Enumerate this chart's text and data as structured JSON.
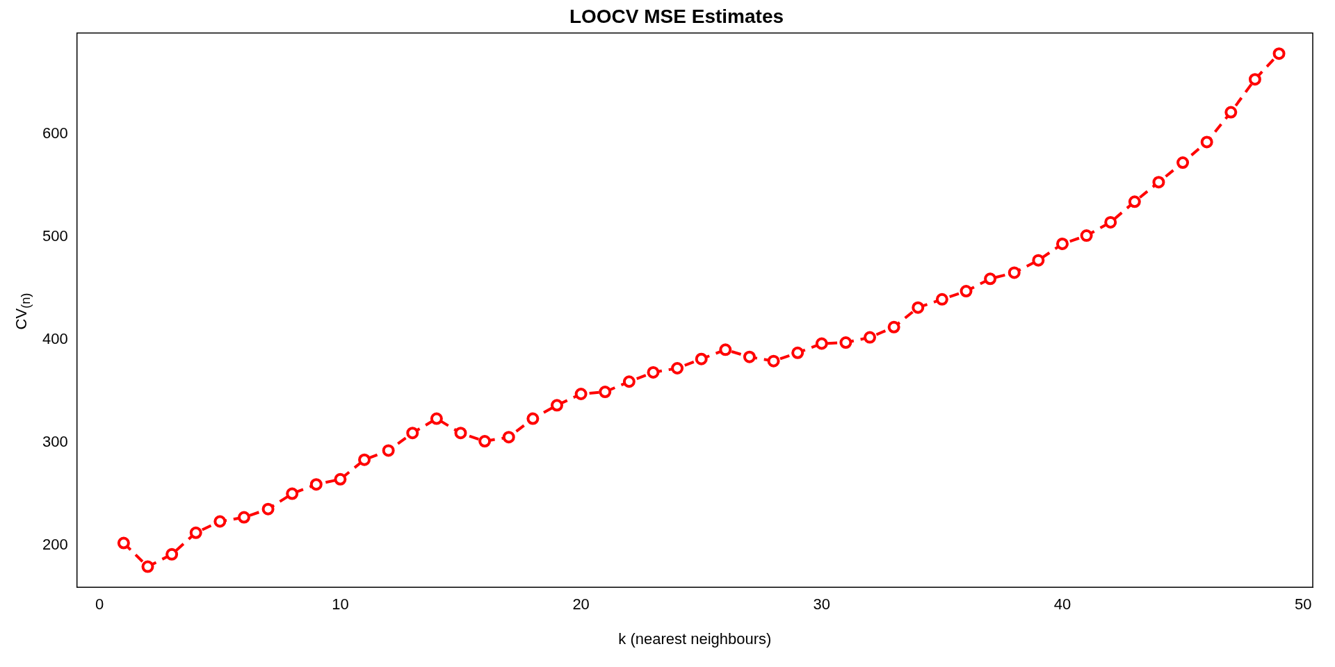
{
  "chart_data": {
    "type": "line",
    "title": "LOOCV MSE Estimates",
    "xlabel": "k (nearest neighbours)",
    "ylabel": "CV$_{(n)}$",
    "x": [
      1,
      2,
      3,
      4,
      5,
      6,
      7,
      8,
      9,
      10,
      11,
      12,
      13,
      14,
      15,
      16,
      17,
      18,
      19,
      20,
      21,
      22,
      23,
      24,
      25,
      26,
      27,
      28,
      29,
      30,
      31,
      32,
      33,
      34,
      35,
      36,
      37,
      38,
      39,
      40,
      41,
      42,
      43,
      44,
      45,
      46,
      47,
      48,
      49
    ],
    "series": [
      {
        "color": "#ff0000",
        "values": [
          202,
          179,
          191,
          212,
          223,
          227,
          235,
          250,
          259,
          264,
          283,
          292,
          309,
          323,
          309,
          301,
          305,
          323,
          336,
          347,
          349,
          359,
          368,
          372,
          381,
          390,
          383,
          379,
          387,
          396,
          397,
          402,
          412,
          431,
          439,
          447,
          459,
          465,
          477,
          493,
          501,
          514,
          534,
          553,
          572,
          592,
          621,
          653,
          678
        ]
      }
    ],
    "xlim": [
      -0.94,
      50.4
    ],
    "ylim": [
      159,
      698
    ],
    "xticks": [
      0,
      10,
      20,
      30,
      40,
      50
    ],
    "yticks": [
      200,
      300,
      400,
      500,
      600
    ],
    "grid": false,
    "legend": false,
    "marker": "circle",
    "line_style": "dashed"
  }
}
